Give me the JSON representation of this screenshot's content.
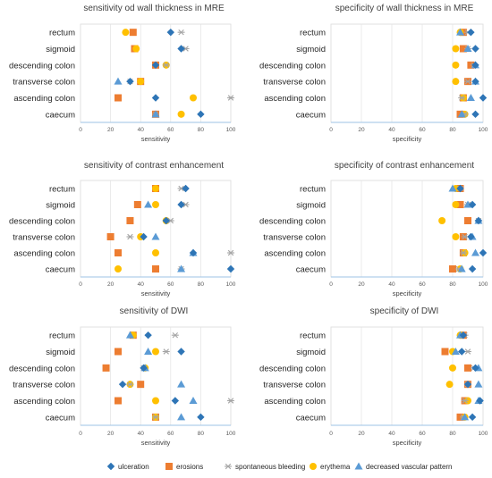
{
  "legend": [
    {
      "key": "ulceration",
      "label": "ulceration",
      "color": "#2e75b6",
      "marker": "diamond"
    },
    {
      "key": "erosions",
      "label": "erosions",
      "color": "#ed7d31",
      "marker": "square"
    },
    {
      "key": "bleeding",
      "label": "spontaneous bleeding",
      "color": "#a5a5a5",
      "marker": "asterisk"
    },
    {
      "key": "erythema",
      "label": "erythema",
      "color": "#ffc000",
      "marker": "circle"
    },
    {
      "key": "vascular",
      "label": "decreased vascular pattern",
      "color": "#5b9bd5",
      "marker": "triangle"
    }
  ],
  "chart_data": [
    {
      "type": "scatter",
      "title": "sensitivity od wall thickness in MRE",
      "xlabel": "sensitivity",
      "xlim": [
        0,
        100
      ],
      "xticks": [
        "0",
        "20",
        "40",
        "60",
        "80",
        "100"
      ],
      "categories": [
        "rectum",
        "sigmoid",
        "descending colon",
        "transverse colon",
        "ascending colon",
        "caecum"
      ],
      "series": [
        {
          "name": "ulceration",
          "values": [
            60,
            67,
            50,
            33,
            50,
            80
          ]
        },
        {
          "name": "erosions",
          "values": [
            35,
            36,
            50,
            40,
            25,
            50
          ]
        },
        {
          "name": "spontaneous bleeding",
          "values": [
            67,
            70,
            57,
            33,
            100,
            50
          ]
        },
        {
          "name": "erythema",
          "values": [
            30,
            37,
            57,
            40,
            75,
            67
          ]
        },
        {
          "name": "decreased vascular pattern",
          "values": [
            null,
            null,
            null,
            25,
            null,
            50
          ]
        }
      ]
    },
    {
      "type": "scatter",
      "title": "specificity of wall thickness in MRE",
      "xlabel": "specificity",
      "xlim": [
        0,
        100
      ],
      "xticks": [
        "0",
        "20",
        "40",
        "60",
        "80",
        "100"
      ],
      "categories": [
        "rectum",
        "sigmoid",
        "descending colon",
        "transverse colon",
        "ascending colon",
        "caecum"
      ],
      "series": [
        {
          "name": "ulceration",
          "values": [
            92,
            95,
            95,
            95,
            100,
            95
          ]
        },
        {
          "name": "erosions",
          "values": [
            87,
            87,
            92,
            90,
            87,
            85
          ]
        },
        {
          "name": "spontaneous bleeding",
          "values": [
            90,
            90,
            94,
            90,
            86,
            88
          ]
        },
        {
          "name": "erythema",
          "values": [
            85,
            82,
            82,
            82,
            87,
            88
          ]
        },
        {
          "name": "decreased vascular pattern",
          "values": [
            85,
            90,
            95,
            95,
            92,
            86
          ]
        }
      ]
    },
    {
      "type": "scatter",
      "title": "sensitivity of contrast enhancement",
      "xlabel": "sensitivity",
      "xlim": [
        0,
        100
      ],
      "xticks": [
        "0",
        "20",
        "40",
        "60",
        "80",
        "100"
      ],
      "categories": [
        "rectum",
        "sigmoid",
        "descending colon",
        "transverse colon",
        "ascending colon",
        "caecum"
      ],
      "series": [
        {
          "name": "ulceration",
          "values": [
            70,
            67,
            57,
            42,
            75,
            100
          ]
        },
        {
          "name": "erosions",
          "values": [
            50,
            38,
            33,
            20,
            25,
            50
          ]
        },
        {
          "name": "spontaneous bleeding",
          "values": [
            67,
            70,
            60,
            33,
            100,
            67
          ]
        },
        {
          "name": "erythema",
          "values": [
            50,
            50,
            57,
            40,
            50,
            25
          ]
        },
        {
          "name": "decreased vascular pattern",
          "values": [
            null,
            45,
            null,
            50,
            75,
            67
          ]
        }
      ]
    },
    {
      "type": "scatter",
      "title": "specificity of contrast enhancement",
      "xlabel": "specificity",
      "xlim": [
        0,
        100
      ],
      "xticks": [
        "0",
        "20",
        "40",
        "60",
        "80",
        "100"
      ],
      "categories": [
        "rectum",
        "sigmoid",
        "descending colon",
        "transverse colon",
        "ascending colon",
        "caecum"
      ],
      "series": [
        {
          "name": "ulceration",
          "values": [
            85,
            93,
            97,
            92,
            100,
            93
          ]
        },
        {
          "name": "erosions",
          "values": [
            85,
            85,
            90,
            87,
            87,
            80
          ]
        },
        {
          "name": "spontaneous bleeding",
          "values": [
            85,
            90,
            97,
            88,
            87,
            84
          ]
        },
        {
          "name": "erythema",
          "values": [
            82,
            82,
            73,
            82,
            88,
            85
          ]
        },
        {
          "name": "decreased vascular pattern",
          "values": [
            80,
            90,
            97,
            93,
            95,
            86
          ]
        }
      ]
    },
    {
      "type": "scatter",
      "title": "sensitivity of DWI",
      "xlabel": "sensitivity",
      "xlim": [
        0,
        100
      ],
      "xticks": [
        "0",
        "20",
        "40",
        "60",
        "80",
        "100"
      ],
      "categories": [
        "rectum",
        "sigmoid",
        "descending colon",
        "transverse colon",
        "ascending colon",
        "caecum"
      ],
      "series": [
        {
          "name": "ulceration",
          "values": [
            45,
            67,
            42,
            28,
            63,
            80
          ]
        },
        {
          "name": "erosions",
          "values": [
            35,
            25,
            17,
            40,
            25,
            50
          ]
        },
        {
          "name": "spontaneous bleeding",
          "values": [
            63,
            57,
            42,
            33,
            100,
            50
          ]
        },
        {
          "name": "erythema",
          "values": [
            35,
            50,
            43,
            33,
            50,
            50
          ]
        },
        {
          "name": "decreased vascular pattern",
          "values": [
            33,
            45,
            43,
            67,
            75,
            67
          ]
        }
      ]
    },
    {
      "type": "scatter",
      "title": "specificity of DWI",
      "xlabel": "specificity",
      "xlim": [
        0,
        100
      ],
      "xticks": [
        "0",
        "20",
        "40",
        "60",
        "80",
        "100"
      ],
      "categories": [
        "rectum",
        "sigmoid",
        "descending colon",
        "transverse colon",
        "ascending colon",
        "caecum"
      ],
      "series": [
        {
          "name": "ulceration",
          "values": [
            87,
            86,
            95,
            90,
            98,
            93
          ]
        },
        {
          "name": "erosions",
          "values": [
            87,
            75,
            90,
            90,
            88,
            85
          ]
        },
        {
          "name": "spontaneous bleeding",
          "values": [
            88,
            90,
            94,
            90,
            88,
            87
          ]
        },
        {
          "name": "erythema",
          "values": [
            85,
            80,
            80,
            78,
            90,
            88
          ]
        },
        {
          "name": "decreased vascular pattern",
          "values": [
            85,
            82,
            97,
            97,
            97,
            88
          ]
        }
      ]
    }
  ]
}
